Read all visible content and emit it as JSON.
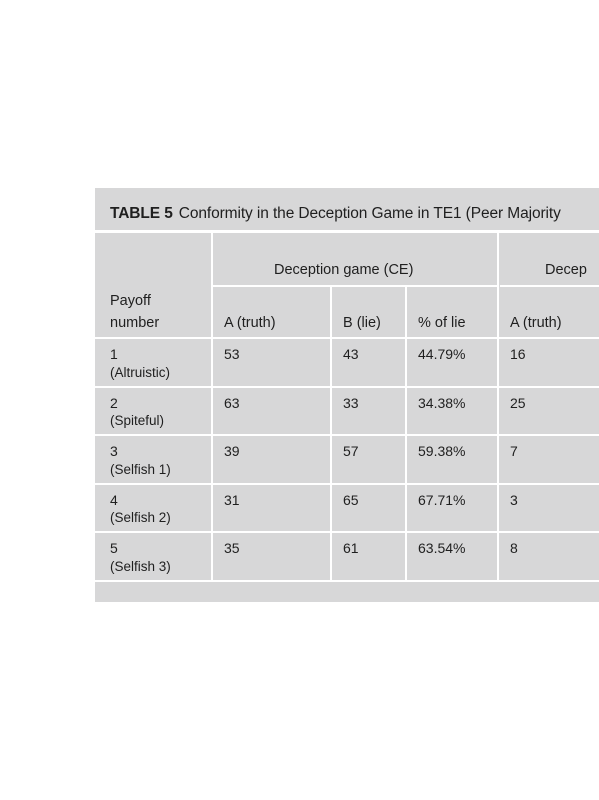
{
  "table": {
    "label": "TABLE 5",
    "title": "Conformity in the Deception Game in TE1 (Peer Majority",
    "group1": "Deception game (CE)",
    "group2": "Decep",
    "row_header_line1": "Payoff",
    "row_header_line2": "number",
    "columns": [
      "A (truth)",
      "B (lie)",
      "% of lie",
      "A (truth)"
    ],
    "rows": [
      {
        "num": "1",
        "name": "(Altruistic)",
        "a": "53",
        "b": "43",
        "pct": "44.79%",
        "a2": "16"
      },
      {
        "num": "2",
        "name": "(Spiteful)",
        "a": "63",
        "b": "33",
        "pct": "34.38%",
        "a2": "25"
      },
      {
        "num": "3",
        "name": "(Selfish 1)",
        "a": "39",
        "b": "57",
        "pct": "59.38%",
        "a2": "7"
      },
      {
        "num": "4",
        "name": "(Selfish 2)",
        "a": "31",
        "b": "65",
        "pct": "67.71%",
        "a2": "3"
      },
      {
        "num": "5",
        "name": "(Selfish 3)",
        "a": "35",
        "b": "61",
        "pct": "63.54%",
        "a2": "8"
      }
    ]
  }
}
